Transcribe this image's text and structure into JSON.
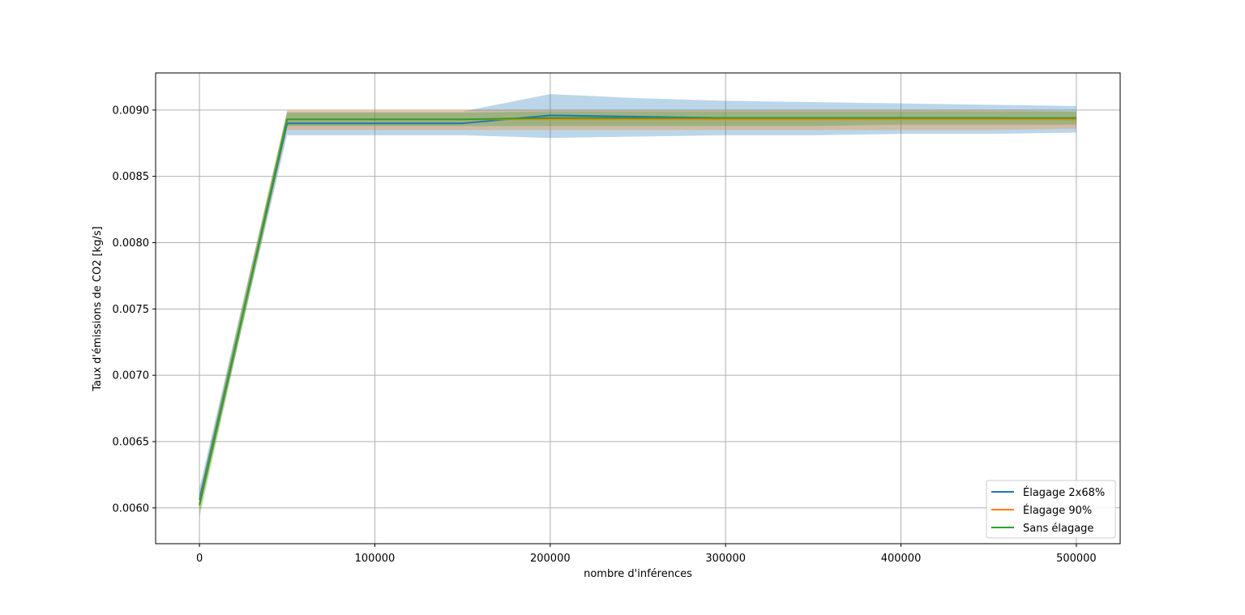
{
  "chart_data": {
    "type": "line",
    "title": "",
    "xlabel": "nombre d'inférences",
    "ylabel": "Taux d'émissions de CO2 [kg/s]",
    "xlim": [
      -25000,
      525000
    ],
    "ylim": [
      0.00573,
      0.00928
    ],
    "xticks": [
      0,
      100000,
      200000,
      300000,
      400000,
      500000
    ],
    "xtick_labels": [
      "0",
      "100000",
      "200000",
      "300000",
      "400000",
      "500000"
    ],
    "yticks": [
      0.006,
      0.0065,
      0.007,
      0.0075,
      0.008,
      0.0085,
      0.009
    ],
    "ytick_labels": [
      "0.0060",
      "0.0065",
      "0.0070",
      "0.0075",
      "0.0080",
      "0.0085",
      "0.0090"
    ],
    "grid": true,
    "legend_position": "lower-right",
    "x": [
      0,
      50000,
      100000,
      150000,
      200000,
      250000,
      300000,
      350000,
      400000,
      450000,
      500000
    ],
    "series": [
      {
        "name": "Élagage 2x68%",
        "color": "#1f77b4",
        "values": [
          0.00606,
          0.0089,
          0.0089,
          0.0089,
          0.00896,
          0.00895,
          0.00894,
          0.00894,
          0.00894,
          0.00894,
          0.00893
        ],
        "lower": [
          0.006,
          0.00881,
          0.00881,
          0.00881,
          0.00879,
          0.0088,
          0.00881,
          0.00881,
          0.00882,
          0.00882,
          0.00883
        ],
        "upper": [
          0.00615,
          0.00899,
          0.00899,
          0.00899,
          0.00912,
          0.00909,
          0.00907,
          0.00906,
          0.00905,
          0.00904,
          0.00903
        ]
      },
      {
        "name": "Élagage 90%",
        "color": "#ff7f0e",
        "values": [
          0.00603,
          0.00893,
          0.00893,
          0.00893,
          0.00893,
          0.00893,
          0.00893,
          0.00893,
          0.00893,
          0.00893,
          0.00893
        ],
        "lower": [
          0.00596,
          0.00885,
          0.00885,
          0.00885,
          0.00885,
          0.00885,
          0.00885,
          0.00885,
          0.00885,
          0.00885,
          0.00886
        ],
        "upper": [
          0.0061,
          0.009,
          0.009,
          0.009,
          0.009,
          0.009,
          0.009,
          0.009,
          0.009,
          0.009,
          0.00899
        ]
      },
      {
        "name": "Sans élagage",
        "color": "#2ca02c",
        "values": [
          0.00602,
          0.00893,
          0.00893,
          0.00893,
          0.00894,
          0.00894,
          0.00894,
          0.00894,
          0.00894,
          0.00894,
          0.00894
        ],
        "lower": [
          0.00593,
          0.00888,
          0.00888,
          0.00888,
          0.00888,
          0.00888,
          0.00888,
          0.00888,
          0.00889,
          0.00889,
          0.00889
        ],
        "upper": [
          0.00611,
          0.00898,
          0.00898,
          0.00898,
          0.00899,
          0.00899,
          0.00899,
          0.00899,
          0.00899,
          0.00899,
          0.00899
        ]
      }
    ]
  }
}
